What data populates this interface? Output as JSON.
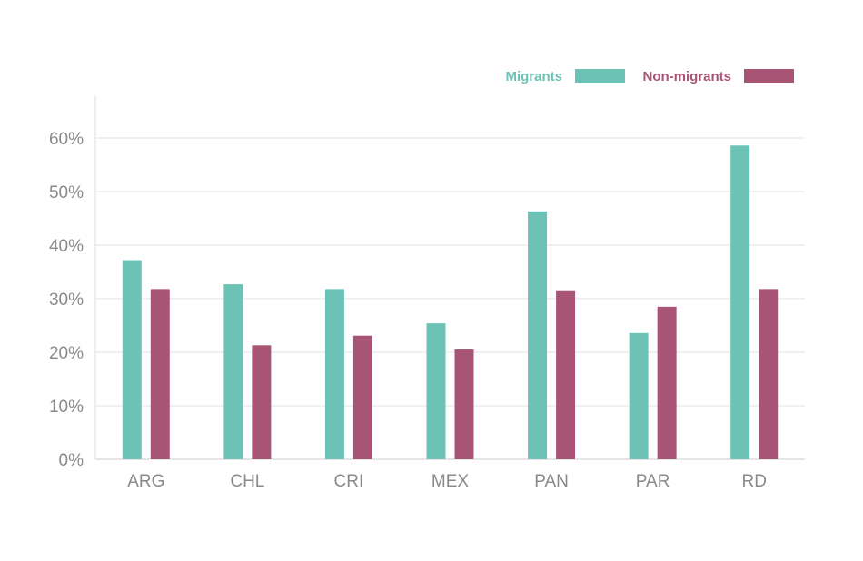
{
  "chart_data": {
    "type": "bar",
    "title": "",
    "xlabel": "",
    "ylabel": "",
    "categories": [
      "ARG",
      "CHL",
      "CRI",
      "MEX",
      "PAN",
      "PAR",
      "RD"
    ],
    "series": [
      {
        "name": "Migrants",
        "color": "#6cc3b5",
        "values": [
          37.2,
          32.7,
          31.8,
          25.4,
          46.3,
          23.6,
          58.6
        ]
      },
      {
        "name": "Non-migrants",
        "color": "#a85474",
        "values": [
          31.8,
          21.3,
          23.1,
          20.5,
          31.4,
          28.5,
          31.8
        ]
      }
    ],
    "ylim": [
      0,
      60
    ],
    "yticks": [
      "0%",
      "10%",
      "20%",
      "30%",
      "40%",
      "50%",
      "60%"
    ],
    "grid": true,
    "legend_position": "top-right"
  }
}
